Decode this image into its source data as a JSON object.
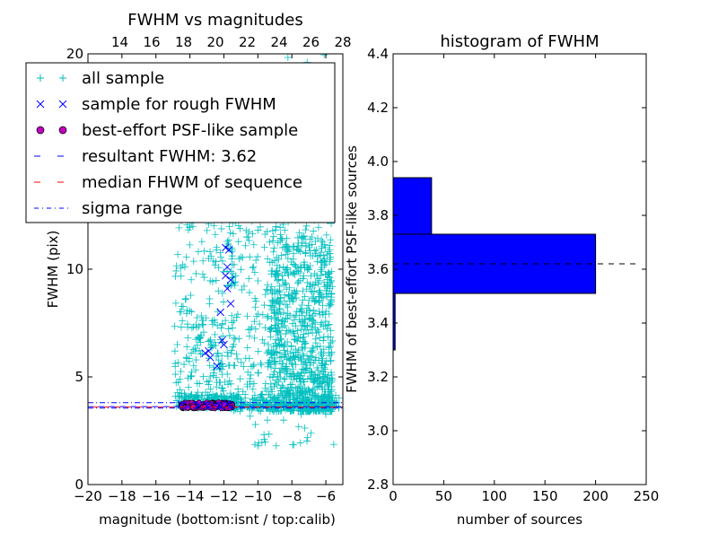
{
  "colors": {
    "all_sample": "#00bfbf",
    "rough_sample": "#0000ff",
    "psf_sample": "#bf00bf",
    "resultant_line": "#0000ff",
    "median_line": "#ff0000",
    "sigma_line": "#0000ff",
    "hist_bar": "#0000ff"
  },
  "chart_data": [
    {
      "type": "scatter",
      "title": "FWHM vs magnitudes",
      "xlabel": "magnitude (bottom:isnt / top:calib)",
      "ylabel": "FWHM (pix)",
      "xlim": [
        -20,
        -5
      ],
      "ylim": [
        0,
        20
      ],
      "xticks": [
        -20,
        -18,
        -16,
        -14,
        -12,
        -10,
        -8,
        -6
      ],
      "yticks": [
        0,
        5,
        10
      ],
      "top_axis": {
        "xlim": [
          12,
          28
        ],
        "ticks": [
          14,
          16,
          18,
          20,
          22,
          24,
          26,
          28
        ]
      },
      "legend": {
        "placement": "upper-left",
        "entries": [
          "all sample",
          "sample for rough FWHM",
          "best-effort PSF-like sample",
          "resultant FWHM: 3.62",
          "median FHWM of sequence",
          "sigma range"
        ]
      },
      "lines": {
        "resultant": 3.62,
        "median": 3.62,
        "sigma_low": 3.55,
        "sigma_high": 3.8
      },
      "series": [
        {
          "name": "all sample",
          "marker": "+",
          "clusters": [
            {
              "xrange": [
                -14.9,
                -11.4
              ],
              "yrange": [
                3.6,
                16.0
              ],
              "count": 360
            },
            {
              "xrange": [
                -11.6,
                -9.2
              ],
              "yrange": [
                3.4,
                20.0
              ],
              "count": 220
            },
            {
              "xrange": [
                -9.3,
                -5.6
              ],
              "yrange": [
                3.4,
                11.5
              ],
              "count": 900
            },
            {
              "xrange": [
                -9.3,
                -5.6
              ],
              "yrange": [
                11.5,
                20.0
              ],
              "count": 90
            },
            {
              "xrange": [
                -14.8,
                -5.2
              ],
              "yrange": [
                3.55,
                4.2
              ],
              "count": 350
            },
            {
              "xrange": [
                -10.5,
                -5.4
              ],
              "yrange": [
                1.8,
                3.5
              ],
              "count": 25
            }
          ]
        },
        {
          "name": "sample for rough FWHM",
          "marker": "x",
          "points": [
            [
              -11.9,
              11.0
            ],
            [
              -11.7,
              10.9
            ],
            [
              -11.8,
              10.1
            ],
            [
              -11.9,
              9.7
            ],
            [
              -11.6,
              9.5
            ],
            [
              -11.8,
              9.1
            ],
            [
              -11.6,
              8.4
            ],
            [
              -12.2,
              8.0
            ],
            [
              -12.1,
              6.7
            ],
            [
              -12.0,
              6.5
            ],
            [
              -12.9,
              6.2
            ],
            [
              -13.1,
              6.1
            ],
            [
              -12.8,
              5.9
            ],
            [
              -12.4,
              5.5
            ],
            [
              -14.5,
              3.72
            ],
            [
              -13.5,
              3.7
            ],
            [
              -12.5,
              3.68
            ],
            [
              -11.8,
              3.75
            ],
            [
              -13.0,
              3.66
            ],
            [
              -12.2,
              3.64
            ]
          ]
        },
        {
          "name": "best-effort PSF-like sample",
          "marker": "o",
          "xrange": [
            -14.5,
            -11.5
          ],
          "yrange": [
            3.55,
            3.8
          ],
          "count": 130
        }
      ]
    },
    {
      "type": "bar",
      "orientation": "horizontal",
      "title": "histogram of FWHM",
      "xlabel": "number of sources",
      "ylabel": "FWHM of best-effort PSF-like sources",
      "xlim": [
        0,
        250
      ],
      "ylim": [
        2.8,
        4.4
      ],
      "xticks": [
        0,
        50,
        100,
        150,
        200,
        250
      ],
      "yticks": [
        2.8,
        3.0,
        3.2,
        3.4,
        3.6,
        3.8,
        4.0,
        4.2,
        4.4
      ],
      "bins": [
        {
          "low": 3.3,
          "high": 3.51,
          "count": 2
        },
        {
          "low": 3.51,
          "high": 3.73,
          "count": 200
        },
        {
          "low": 3.73,
          "high": 3.94,
          "count": 38
        }
      ],
      "line": 3.62
    }
  ]
}
